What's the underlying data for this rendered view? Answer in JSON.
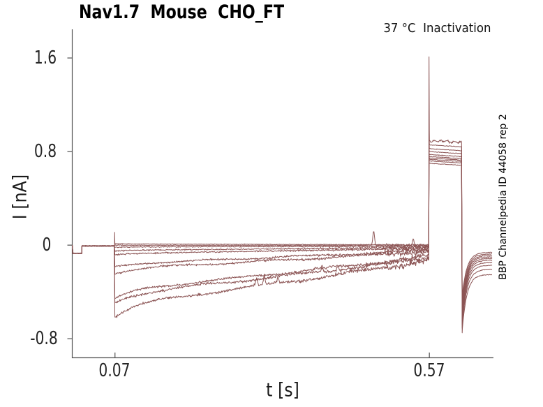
{
  "chart_data": {
    "type": "line",
    "title": "Nav1.7  Mouse  CHO_FT",
    "subtitle": "37 °C  Inactivation",
    "xlabel": "t [s]",
    "ylabel": "I [nA]",
    "side_label": "BBP Channelpedia ID 44058 rep 2",
    "trace_color": "#8c5555",
    "axis_color": "#4f4f4f",
    "tick_label_color": "#262626",
    "x_range": [
      0.002,
      0.6725
    ],
    "y_range": [
      -0.96,
      1.845
    ],
    "x_ticks": [
      0.07,
      0.57
    ],
    "x_tick_labels": [
      "0.07",
      "0.57"
    ],
    "y_ticks": [
      1.6,
      0.8,
      0,
      -0.8
    ],
    "y_tick_labels": [
      "1.6",
      "0.8",
      "0",
      "-0.8"
    ],
    "grid": false,
    "legend": "none",
    "n_sweeps": 10,
    "protocol": {
      "baseline_nA": -0.005,
      "prepulse": {
        "t_start": 0.0035,
        "t_end": 0.018,
        "amplitude": -0.07
      },
      "cond_step_t": 0.07,
      "test_step_t": 0.57,
      "test_end_t": 0.6225,
      "trace_end_t": 0.6705,
      "cap_spike_nA": 0.11,
      "test_peak_max_nA": 1.61
    },
    "sweeps": [
      {
        "cond_I0": 0.012,
        "cond_end": 0.002,
        "peak": 1.61,
        "plateau": 0.895,
        "tail_min": -0.45,
        "tail_end": -0.062,
        "bursts": []
      },
      {
        "cond_I0": 0.0,
        "cond_end": -0.004,
        "peak": 1.15,
        "plateau": 0.858,
        "tail_min": -0.49,
        "tail_end": -0.075,
        "bursts": [
          [
            0.482,
            0.125
          ],
          [
            0.545,
            0.05
          ]
        ]
      },
      {
        "cond_I0": -0.018,
        "cond_end": -0.008,
        "peak": 0.95,
        "plateau": 0.825,
        "tail_min": -0.53,
        "tail_end": -0.088,
        "bursts": []
      },
      {
        "cond_I0": -0.05,
        "cond_end": -0.018,
        "peak": 0.84,
        "plateau": 0.8,
        "tail_min": -0.56,
        "tail_end": -0.1,
        "bursts": []
      },
      {
        "cond_I0": -0.083,
        "cond_end": -0.026,
        "peak": 0.8,
        "plateau": 0.775,
        "tail_min": -0.59,
        "tail_end": -0.113,
        "bursts": []
      },
      {
        "cond_I0": -0.19,
        "cond_end": -0.042,
        "peak": 0.78,
        "plateau": 0.758,
        "tail_min": -0.62,
        "tail_end": -0.128,
        "bursts": []
      },
      {
        "cond_I0": -0.24,
        "cond_end": -0.052,
        "peak": 0.77,
        "plateau": 0.745,
        "tail_min": -0.65,
        "tail_end": -0.148,
        "bursts": []
      },
      {
        "cond_I0": -0.46,
        "cond_end": -0.09,
        "peak": 0.76,
        "plateau": 0.733,
        "tail_min": -0.68,
        "tail_end": -0.172,
        "bursts": []
      },
      {
        "cond_I0": -0.5,
        "cond_end": -0.105,
        "peak": 0.74,
        "plateau": 0.72,
        "tail_min": -0.71,
        "tail_end": -0.207,
        "bursts": [
          [
            0.4,
            0.05
          ],
          [
            0.425,
            0.042
          ]
        ]
      },
      {
        "cond_I0": -0.61,
        "cond_end": -0.125,
        "peak": 0.72,
        "plateau": 0.7,
        "tail_min": -0.75,
        "tail_end": -0.252,
        "bursts": [
          [
            0.296,
            0.065
          ],
          [
            0.308,
            0.075
          ],
          [
            0.33,
            0.04
          ]
        ]
      }
    ]
  }
}
